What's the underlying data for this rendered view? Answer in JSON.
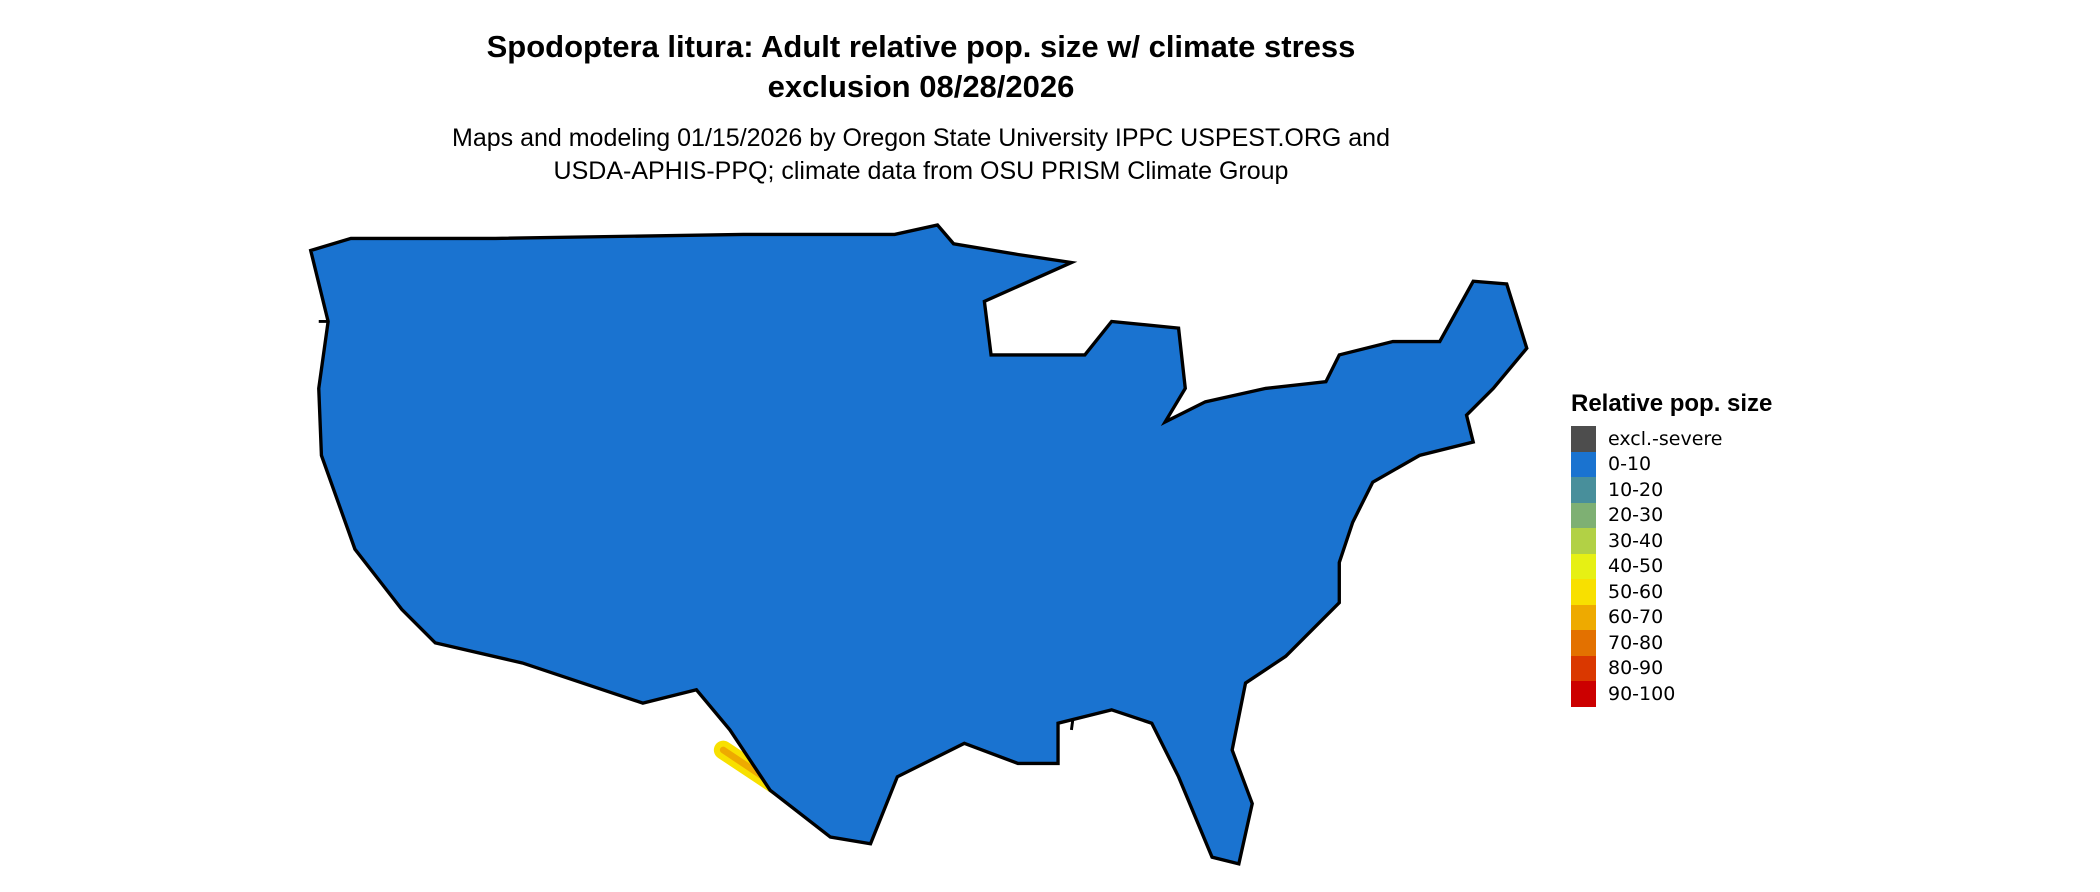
{
  "title_line1": "Spodoptera litura: Adult relative pop. size w/ climate stress",
  "title_line2": "exclusion 08/28/2026",
  "subtitle_line1": "Maps and modeling 01/15/2026 by Oregon State University IPPC USPEST.ORG and",
  "subtitle_line2": "USDA-APHIS-PPQ; climate data from OSU PRISM Climate Group",
  "map_region": "Contiguous United States",
  "legend": {
    "title": "Relative pop. size",
    "items": [
      {
        "label": "excl.-severe",
        "color": "#4d4d4d"
      },
      {
        "label": "0-10",
        "color": "#1a73d0"
      },
      {
        "label": "10-20",
        "color": "#488f9b"
      },
      {
        "label": "20-30",
        "color": "#7eb073"
      },
      {
        "label": "30-40",
        "color": "#b2d145"
      },
      {
        "label": "40-50",
        "color": "#e6f014"
      },
      {
        "label": "50-60",
        "color": "#f8e000"
      },
      {
        "label": "60-70",
        "color": "#eeaa00"
      },
      {
        "label": "70-80",
        "color": "#e37100"
      },
      {
        "label": "80-90",
        "color": "#da3800"
      },
      {
        "label": "90-100",
        "color": "#cc0000"
      }
    ]
  }
}
